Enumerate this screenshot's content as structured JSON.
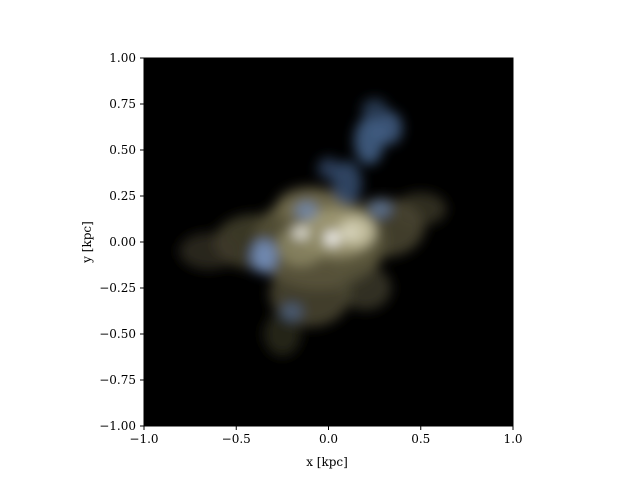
{
  "chart_data": {
    "type": "heatmap",
    "title": "",
    "xlabel": "x [kpc]",
    "ylabel": "y [kpc]",
    "xlim": [
      -1.0,
      1.0
    ],
    "ylim": [
      -1.0,
      1.0
    ],
    "xticks": [
      -1.0,
      -0.5,
      0.0,
      0.5,
      1.0
    ],
    "xtick_labels": [
      "−1.0",
      "−0.5",
      "0.0",
      "0.5",
      "1.0"
    ],
    "yticks": [
      -1.0,
      -0.75,
      -0.5,
      -0.25,
      0.0,
      0.25,
      0.5,
      0.75,
      1.0
    ],
    "ytick_labels": [
      "−1.00",
      "−0.75",
      "−0.50",
      "−0.25",
      "0.00",
      "0.25",
      "0.50",
      "0.75",
      "1.00"
    ],
    "grid": false,
    "background_color": "#000000",
    "image": "rgb stellar-light composite of a galaxy viewed face-on",
    "image_colors": {
      "old_stars": "#9a9468",
      "young_stars": "#7fa3d6",
      "core": "#f2f0e4"
    },
    "blobs": [
      {
        "x": -0.05,
        "y": 0.0,
        "sx": 0.36,
        "sy": 0.26,
        "color": "#6a6446",
        "opacity": 0.85
      },
      {
        "x": -0.4,
        "y": 0.0,
        "sx": 0.22,
        "sy": 0.15,
        "color": "#4e4a33",
        "opacity": 0.75
      },
      {
        "x": -0.65,
        "y": -0.05,
        "sx": 0.16,
        "sy": 0.1,
        "color": "#3e3b29",
        "opacity": 0.65
      },
      {
        "x": 0.3,
        "y": 0.08,
        "sx": 0.22,
        "sy": 0.16,
        "color": "#57533a",
        "opacity": 0.75
      },
      {
        "x": 0.5,
        "y": 0.18,
        "sx": 0.14,
        "sy": 0.09,
        "color": "#48452f",
        "opacity": 0.65
      },
      {
        "x": -0.1,
        "y": -0.28,
        "sx": 0.22,
        "sy": 0.18,
        "color": "#55513a",
        "opacity": 0.75
      },
      {
        "x": -0.25,
        "y": -0.5,
        "sx": 0.1,
        "sy": 0.12,
        "color": "#3c3a28",
        "opacity": 0.6
      },
      {
        "x": 0.2,
        "y": -0.25,
        "sx": 0.14,
        "sy": 0.12,
        "color": "#4c4934",
        "opacity": 0.65
      },
      {
        "x": -0.1,
        "y": 0.2,
        "sx": 0.18,
        "sy": 0.1,
        "color": "#7a7452",
        "opacity": 0.7
      },
      {
        "x": 0.05,
        "y": 0.05,
        "sx": 0.2,
        "sy": 0.13,
        "color": "#a39d78",
        "opacity": 0.85
      },
      {
        "x": -0.15,
        "y": -0.02,
        "sx": 0.13,
        "sy": 0.11,
        "color": "#8f8a66",
        "opacity": 0.8
      },
      {
        "x": 0.15,
        "y": 0.06,
        "sx": 0.1,
        "sy": 0.08,
        "color": "#c9c4a6",
        "opacity": 0.85
      },
      {
        "x": 0.1,
        "y": 0.32,
        "sx": 0.08,
        "sy": 0.12,
        "color": "#3f5a80",
        "opacity": 0.75
      },
      {
        "x": 0.22,
        "y": 0.55,
        "sx": 0.08,
        "sy": 0.13,
        "color": "#4a6a96",
        "opacity": 0.8
      },
      {
        "x": 0.33,
        "y": 0.62,
        "sx": 0.07,
        "sy": 0.09,
        "color": "#4e6e9a",
        "opacity": 0.75
      },
      {
        "x": 0.25,
        "y": 0.72,
        "sx": 0.07,
        "sy": 0.06,
        "color": "#3c5478",
        "opacity": 0.65
      },
      {
        "x": 0.0,
        "y": 0.4,
        "sx": 0.06,
        "sy": 0.06,
        "color": "#3f587e",
        "opacity": 0.65
      },
      {
        "x": -0.35,
        "y": -0.08,
        "sx": 0.07,
        "sy": 0.09,
        "color": "#7593c4",
        "opacity": 0.85
      },
      {
        "x": -0.12,
        "y": 0.17,
        "sx": 0.06,
        "sy": 0.05,
        "color": "#6f8cbc",
        "opacity": 0.75
      },
      {
        "x": 0.28,
        "y": 0.18,
        "sx": 0.06,
        "sy": 0.05,
        "color": "#6581b0",
        "opacity": 0.7
      },
      {
        "x": -0.2,
        "y": -0.38,
        "sx": 0.06,
        "sy": 0.05,
        "color": "#4e6b96",
        "opacity": 0.65
      },
      {
        "x": -0.15,
        "y": 0.05,
        "sx": 0.04,
        "sy": 0.03,
        "color": "#f0efe8",
        "opacity": 0.95
      },
      {
        "x": 0.02,
        "y": 0.02,
        "sx": 0.04,
        "sy": 0.035,
        "color": "#ffffff",
        "opacity": 0.95
      },
      {
        "x": 0.12,
        "y": 0.05,
        "sx": 0.03,
        "sy": 0.03,
        "color": "#e6e3d2",
        "opacity": 0.9
      }
    ]
  }
}
